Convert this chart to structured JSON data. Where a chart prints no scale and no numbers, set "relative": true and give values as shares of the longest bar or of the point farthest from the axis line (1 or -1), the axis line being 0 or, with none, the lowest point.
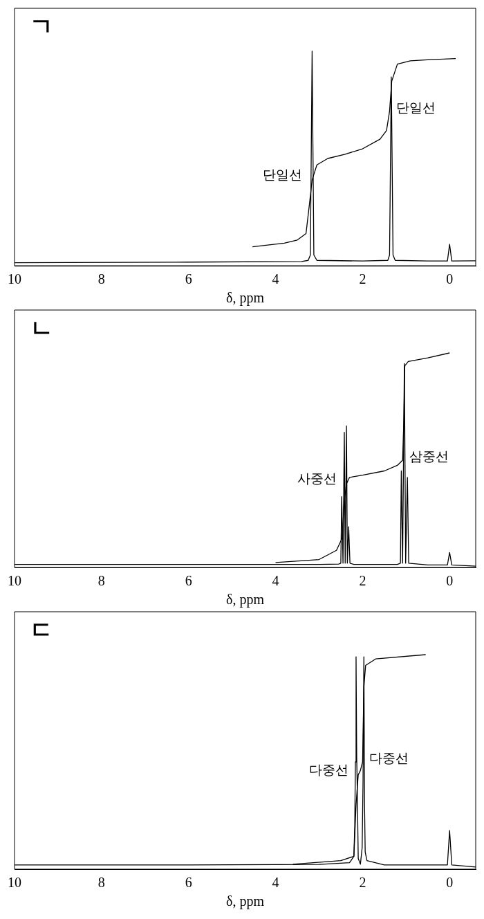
{
  "chart_data": [
    {
      "type": "line",
      "title": "ㄱ",
      "xlabel": "δ, ppm",
      "relative": true,
      "xlim": [
        10,
        -0.6
      ],
      "xticks": [
        10,
        8,
        6,
        4,
        2,
        0
      ],
      "marker": "none",
      "line_style": "solid",
      "series": [
        {
          "color": "#000000",
          "x": [
            10,
            6,
            3.4,
            3.25,
            3.2,
            3.16,
            3.12,
            3.05,
            2,
            1.42,
            1.38,
            1.34,
            1.3,
            1.25,
            0.5,
            0.05,
            0,
            -0.05,
            -0.6
          ],
          "values": [
            0.014,
            0.017,
            0.02,
            0.025,
            0.05,
            1,
            0.05,
            0.025,
            0.022,
            0.025,
            0.05,
            0.88,
            0.05,
            0.025,
            0.022,
            0.022,
            0.1,
            0.022,
            0.023
          ]
        },
        {
          "color": "#000000",
          "x": [
            4.53,
            3.8,
            3.5,
            3.3,
            3.22,
            3.16,
            3.05,
            2.8,
            2.4,
            2,
            1.6,
            1.45,
            1.38,
            1.33,
            1.2,
            0.9,
            0.5,
            -0.14
          ],
          "values": [
            0.088,
            0.105,
            0.12,
            0.15,
            0.29,
            0.4,
            0.47,
            0.5,
            0.52,
            0.545,
            0.59,
            0.63,
            0.72,
            0.86,
            0.94,
            0.955,
            0.96,
            0.966
          ]
        }
      ],
      "annotations": [
        {
          "text": "단일선",
          "x": 3.16,
          "y": 0.4
        },
        {
          "text": "단일선",
          "x": 1.38,
          "y": 0.72
        }
      ]
    },
    {
      "type": "line",
      "title": "ㄴ",
      "xlabel": "δ, ppm",
      "relative": true,
      "xlim": [
        10,
        -0.6
      ],
      "xticks": [
        10,
        8,
        6,
        4,
        2,
        0
      ],
      "marker": "none",
      "line_style": "solid",
      "series": [
        {
          "color": "#000000",
          "x": [
            10,
            6,
            3,
            2.55,
            2.5,
            2.48,
            2.45,
            2.42,
            2.4,
            2.37,
            2.35,
            2.32,
            2.29,
            2.2,
            1.2,
            1.13,
            1.11,
            1.08,
            1.04,
            1.01,
            0.97,
            0.94,
            0.5,
            0.05,
            0,
            -0.05,
            -0.6
          ],
          "values": [
            0.014,
            0.014,
            0.014,
            0.016,
            0.02,
            0.33,
            0.02,
            0.63,
            0.02,
            0.66,
            0.02,
            0.19,
            0.02,
            0.014,
            0.014,
            0.02,
            0.45,
            0.02,
            0.95,
            0.02,
            0.42,
            0.02,
            0.012,
            0.012,
            0.07,
            0.012,
            0.006
          ]
        },
        {
          "color": "#000000",
          "x": [
            4,
            3,
            2.6,
            2.47,
            2.42,
            2.37,
            2.3,
            2,
            1.5,
            1.2,
            1.08,
            1.05,
            1.03,
            0.95,
            0.5,
            0
          ],
          "values": [
            0.023,
            0.037,
            0.08,
            0.136,
            0.31,
            0.39,
            0.42,
            0.43,
            0.45,
            0.476,
            0.5,
            0.7,
            0.94,
            0.96,
            0.977,
            1
          ]
        }
      ],
      "annotations": [
        {
          "text": "사중선",
          "x": 2.37,
          "y": 0.39
        },
        {
          "text": "삼중선",
          "x": 1.08,
          "y": 0.5
        }
      ]
    },
    {
      "type": "line",
      "title": "ㄷ",
      "xlabel": "δ, ppm",
      "relative": true,
      "xlim": [
        10,
        -0.6
      ],
      "xticks": [
        10,
        8,
        6,
        4,
        2,
        0
      ],
      "marker": "none",
      "line_style": "solid",
      "series": [
        {
          "color": "#000000",
          "x": [
            10,
            6,
            3,
            2.3,
            2.2,
            2.18,
            2.165,
            2.15,
            2.135,
            2.12,
            2.1,
            2.05,
            2.01,
            1.99,
            1.97,
            1.955,
            1.94,
            1.9,
            1.5,
            0.05,
            0,
            -0.05,
            -0.6
          ],
          "values": [
            0.02,
            0.02,
            0.022,
            0.03,
            0.06,
            0.2,
            0.5,
            0.99,
            0.52,
            0.35,
            0.05,
            0.023,
            0.1,
            0.4,
            0.99,
            0.3,
            0.08,
            0.04,
            0.02,
            0.02,
            0.18,
            0.02,
            0.01
          ]
        },
        {
          "color": "#000000",
          "x": [
            3.6,
            2.5,
            2.2,
            2.15,
            2.1,
            2.05,
            2,
            1.97,
            1.93,
            1.7,
            0.55
          ],
          "values": [
            0.023,
            0.04,
            0.06,
            0.3,
            0.44,
            0.46,
            0.5,
            0.85,
            0.95,
            0.98,
            1
          ]
        }
      ],
      "annotations": [
        {
          "text": "다중선",
          "x": 2.1,
          "y": 0.44
        },
        {
          "text": "다중선",
          "x": 2,
          "y": 0.5
        }
      ]
    }
  ]
}
